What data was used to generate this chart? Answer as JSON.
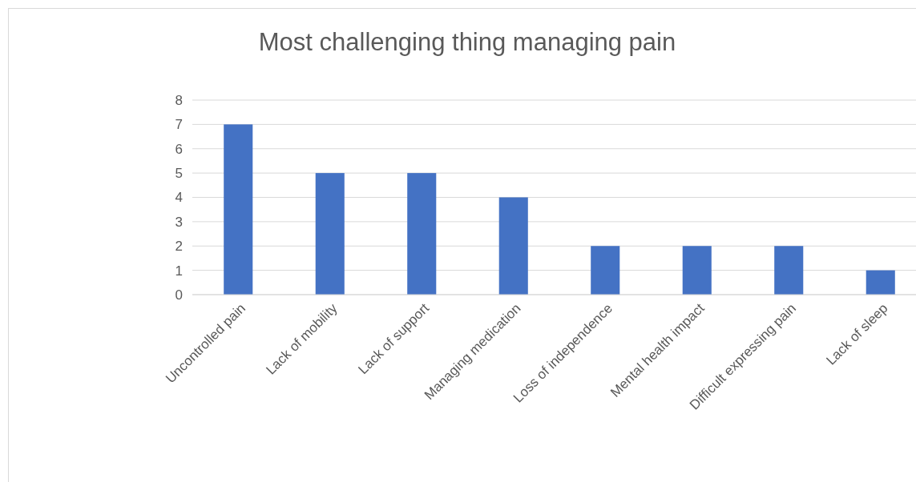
{
  "chart_data": {
    "type": "bar",
    "title": "Most challenging thing managing pain",
    "categories": [
      "Uncontrolled pain",
      "Lack of mobility",
      "Lack of support",
      "Managing medication",
      "Loss of independence",
      "Mental health impact",
      "Difficult expressing pain",
      "Lack of sleep"
    ],
    "values": [
      7,
      5,
      5,
      4,
      2,
      2,
      2,
      1
    ],
    "color": "#4472c4",
    "ylim": [
      0,
      8
    ],
    "yticks": [
      0,
      1,
      2,
      3,
      4,
      5,
      6,
      7,
      8
    ],
    "grid": "y"
  }
}
